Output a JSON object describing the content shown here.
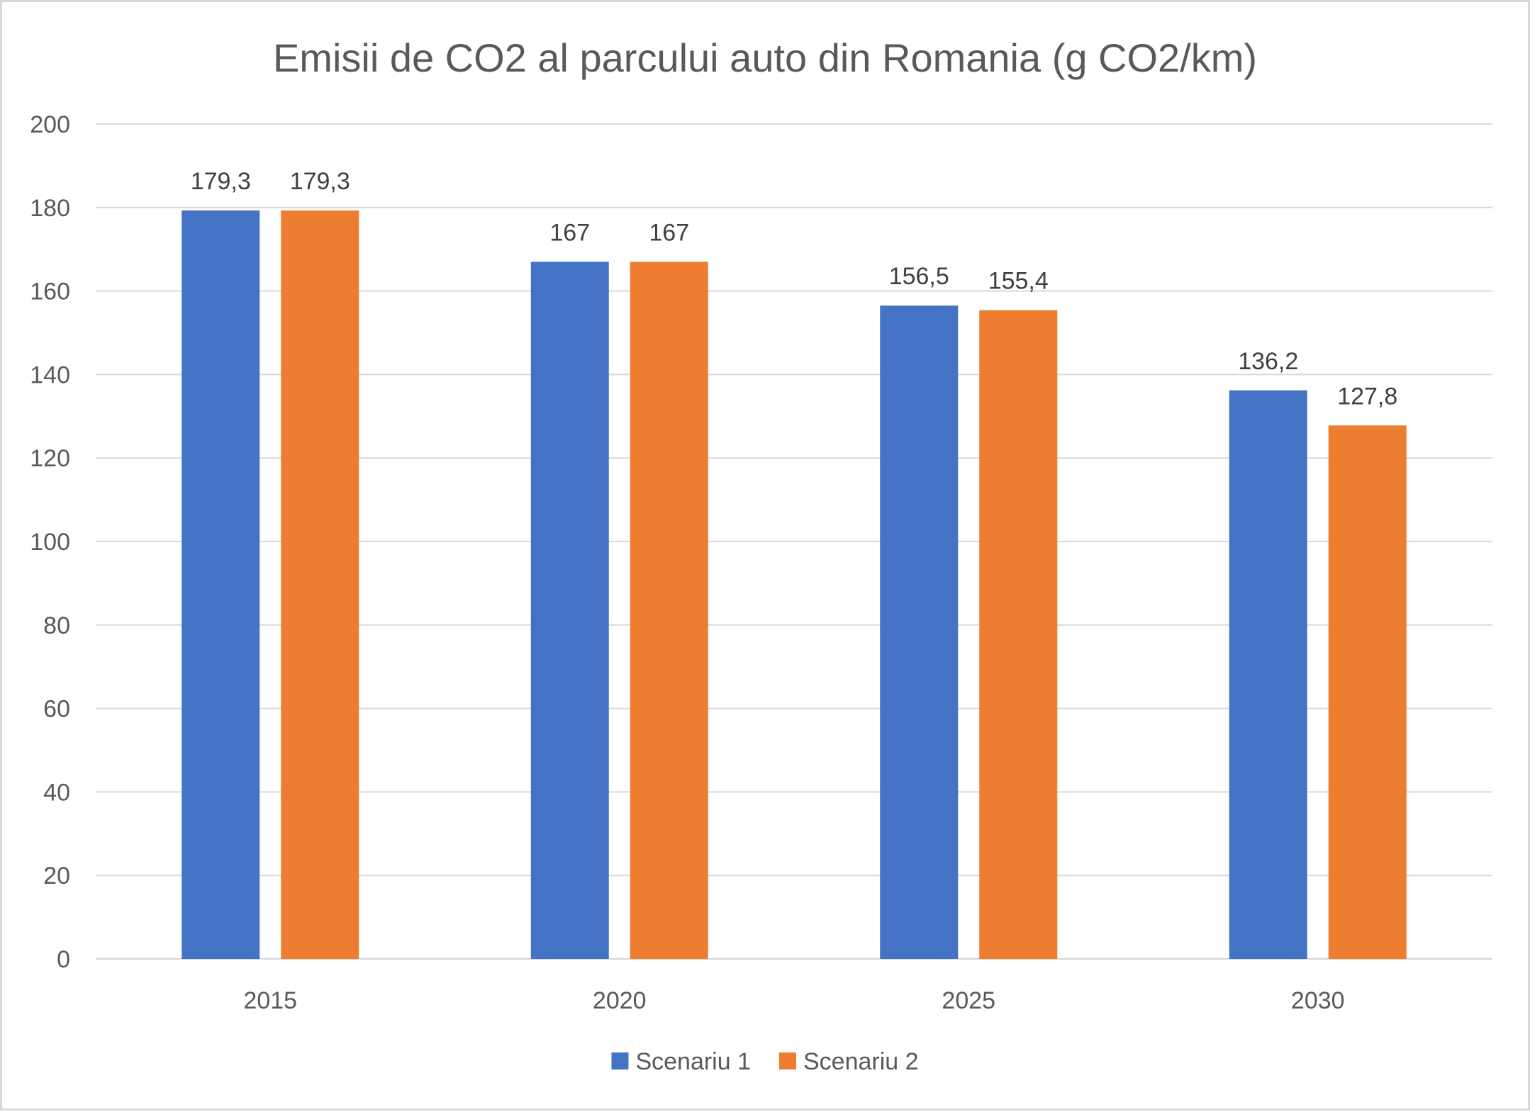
{
  "chart_data": {
    "type": "bar",
    "title": "Emisii de CO2 al parcului auto din Romania (g CO2/km)",
    "categories": [
      "2015",
      "2020",
      "2025",
      "2030"
    ],
    "series": [
      {
        "name": "Scenariu 1",
        "color": "#4472C4",
        "values": [
          179.3,
          167,
          156.5,
          136.2
        ],
        "labels": [
          "179,3",
          "167",
          "156,5",
          "136,2"
        ]
      },
      {
        "name": "Scenariu 2",
        "color": "#ED7D31",
        "values": [
          179.3,
          167,
          155.4,
          127.8
        ],
        "labels": [
          "179,3",
          "167",
          "155,4",
          "127,8"
        ]
      }
    ],
    "ylim": [
      0,
      200
    ],
    "yticks": [
      "0",
      "20",
      "40",
      "60",
      "80",
      "100",
      "120",
      "140",
      "160",
      "180",
      "200"
    ],
    "xlabel": "",
    "ylabel": "",
    "grid": true,
    "legend": "bottom"
  }
}
